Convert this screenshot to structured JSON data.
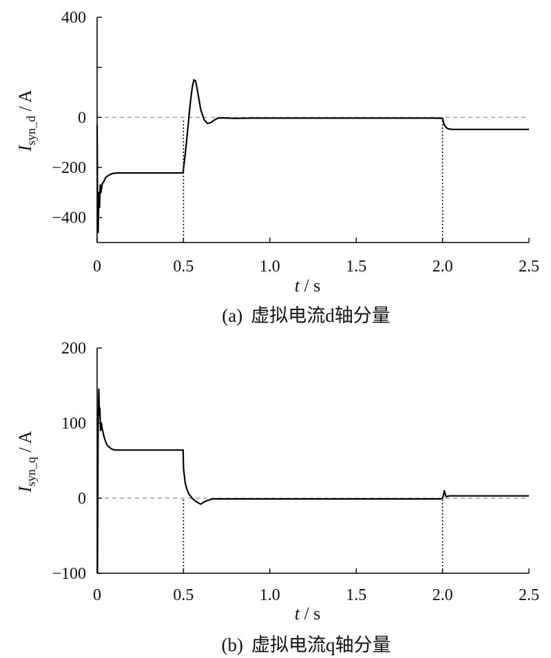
{
  "chart_data": [
    {
      "type": "line",
      "panel_label": "(a)",
      "caption": "虚拟电流d轴分量",
      "ylabel_main": "I",
      "ylabel_sub": "syn_d",
      "ylabel_unit": " / A",
      "xlabel_var": "t",
      "xlabel_unit": " / s",
      "xlim": [
        0,
        2.5
      ],
      "ylim": [
        -500,
        400
      ],
      "xticks": [
        0,
        0.5,
        1.0,
        1.5,
        2.0,
        2.5
      ],
      "xtick_labels": [
        "0",
        "0.5",
        "1.0",
        "1.5",
        "2.0",
        "2.5"
      ],
      "yticks": [
        -400,
        -200,
        0,
        200,
        400
      ],
      "ytick_labels": [
        "−400",
        "−200",
        "0",
        "",
        "400"
      ],
      "zero_line": true,
      "event_lines": [
        0.5,
        2.0
      ],
      "series": [
        {
          "x": [
            0,
            0.003,
            0.006,
            0.01,
            0.014,
            0.018,
            0.022,
            0.03,
            0.04,
            0.05,
            0.07,
            0.09,
            0.12,
            0.2,
            0.3,
            0.4,
            0.498,
            0.5,
            0.51,
            0.52,
            0.53,
            0.54,
            0.55,
            0.56,
            0.57,
            0.58,
            0.6,
            0.62,
            0.64,
            0.66,
            0.68,
            0.7,
            0.72,
            0.75,
            0.8,
            0.9,
            1.2,
            1.6,
            1.95,
            2.0,
            2.005,
            2.01,
            2.02,
            2.03,
            2.04,
            2.06,
            2.1,
            2.3,
            2.5
          ],
          "y": [
            -30,
            -440,
            -460,
            -300,
            -360,
            -270,
            -300,
            -265,
            -255,
            -240,
            -230,
            -224,
            -222,
            -222,
            -222,
            -222,
            -222,
            -205,
            -150,
            -80,
            -10,
            60,
            115,
            150,
            145,
            110,
            30,
            -10,
            -25,
            -20,
            -10,
            -3,
            -2,
            -3,
            -4,
            -3,
            -3,
            -3,
            -3,
            -4,
            -20,
            -30,
            -40,
            -45,
            -47,
            -48,
            -48,
            -48,
            -48
          ]
        }
      ]
    },
    {
      "type": "line",
      "panel_label": "(b)",
      "caption": "虚拟电流q轴分量",
      "ylabel_main": "I",
      "ylabel_sub": "syn_q",
      "ylabel_unit": " / A",
      "xlabel_var": "t",
      "xlabel_unit": " / s",
      "xlim": [
        0,
        2.5
      ],
      "ylim": [
        -100,
        200
      ],
      "xticks": [
        0,
        0.5,
        1.0,
        1.5,
        2.0,
        2.5
      ],
      "xtick_labels": [
        "0",
        "0.5",
        "1.0",
        "1.5",
        "2.0",
        "2.5"
      ],
      "yticks": [
        -100,
        0,
        100,
        200
      ],
      "ytick_labels": [
        "−100",
        "0",
        "100",
        "200"
      ],
      "zero_line": true,
      "event_lines": [
        0.5,
        2.0
      ],
      "series": [
        {
          "x": [
            0,
            0.002,
            0.004,
            0.006,
            0.008,
            0.01,
            0.013,
            0.016,
            0.02,
            0.025,
            0.03,
            0.04,
            0.05,
            0.06,
            0.08,
            0.1,
            0.15,
            0.2,
            0.3,
            0.4,
            0.498,
            0.5,
            0.51,
            0.52,
            0.53,
            0.55,
            0.57,
            0.59,
            0.6,
            0.62,
            0.64,
            0.67,
            0.7,
            0.8,
            1.0,
            1.5,
            1.99,
            2.0,
            2.005,
            2.01,
            2.015,
            2.02,
            2.04,
            2.1,
            2.5
          ],
          "y": [
            -100,
            -100,
            0,
            100,
            120,
            145,
            110,
            120,
            90,
            100,
            92,
            82,
            75,
            70,
            66,
            64,
            64,
            64,
            64,
            64,
            64,
            40,
            20,
            12,
            6,
            0,
            -4,
            -7,
            -8,
            -5,
            -3,
            -1,
            -1,
            -1,
            -1,
            -1,
            -1,
            0,
            4,
            10,
            6,
            2,
            3,
            3,
            3
          ]
        }
      ]
    }
  ]
}
